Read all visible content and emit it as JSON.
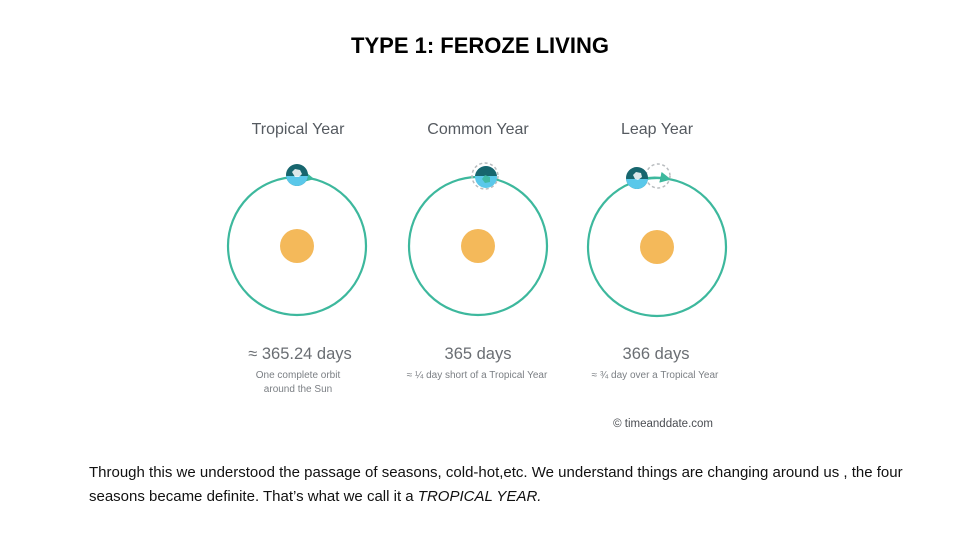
{
  "slide": {
    "title": "TYPE 1: FEROZE LIVING",
    "caption_text": "Through this we understood the passage of seasons, cold-hot,etc. We understand things are changing around us , the four seasons became definite. That’s what we call it a",
    "caption_emphasis": "TROPICAL YEAR."
  },
  "diagram": {
    "credit": "© timeanddate.com",
    "colors": {
      "orbit": "#3db89d",
      "sun": "#f4b95a",
      "earth_dark": "#17666e",
      "earth_light": "#5ac8ea",
      "ghost_ring": "#b8bcbf",
      "heading_text": "#555a60"
    },
    "columns": [
      {
        "title": "Tropical Year",
        "days": "≈ 365.24 days",
        "note_lines": [
          "One complete orbit",
          "around the Sun"
        ]
      },
      {
        "title": "Common Year",
        "days": "365 days",
        "note_lines": [
          "≈ ¼ day short of a Tropical Year"
        ]
      },
      {
        "title": "Leap Year",
        "days": "366 days",
        "note_lines": [
          "≈ ¾ day over a Tropical Year"
        ]
      }
    ]
  }
}
